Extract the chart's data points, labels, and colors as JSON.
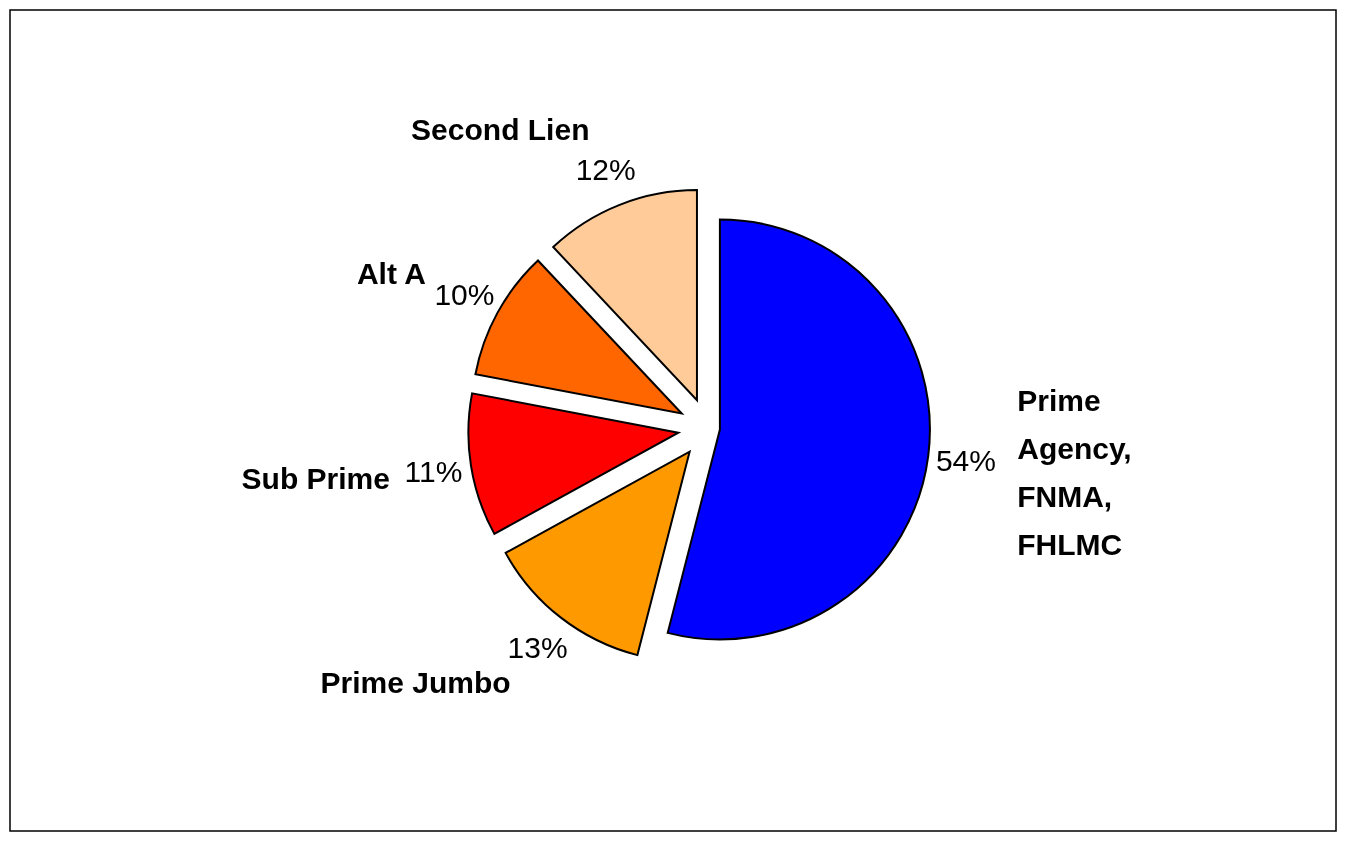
{
  "chart_data": {
    "type": "pie",
    "categories": [
      "Prime Agency, FNMA, FHLMC",
      "Prime Jumbo",
      "Sub Prime",
      "Alt A",
      "Second Lien"
    ],
    "values": [
      54,
      13,
      11,
      10,
      12
    ],
    "colors": [
      "#0000ff",
      "#ff9900",
      "#ff0000",
      "#ff6600",
      "#ffcc99"
    ],
    "value_labels": [
      "54%",
      "13%",
      "11%",
      "10%",
      "12%"
    ]
  }
}
